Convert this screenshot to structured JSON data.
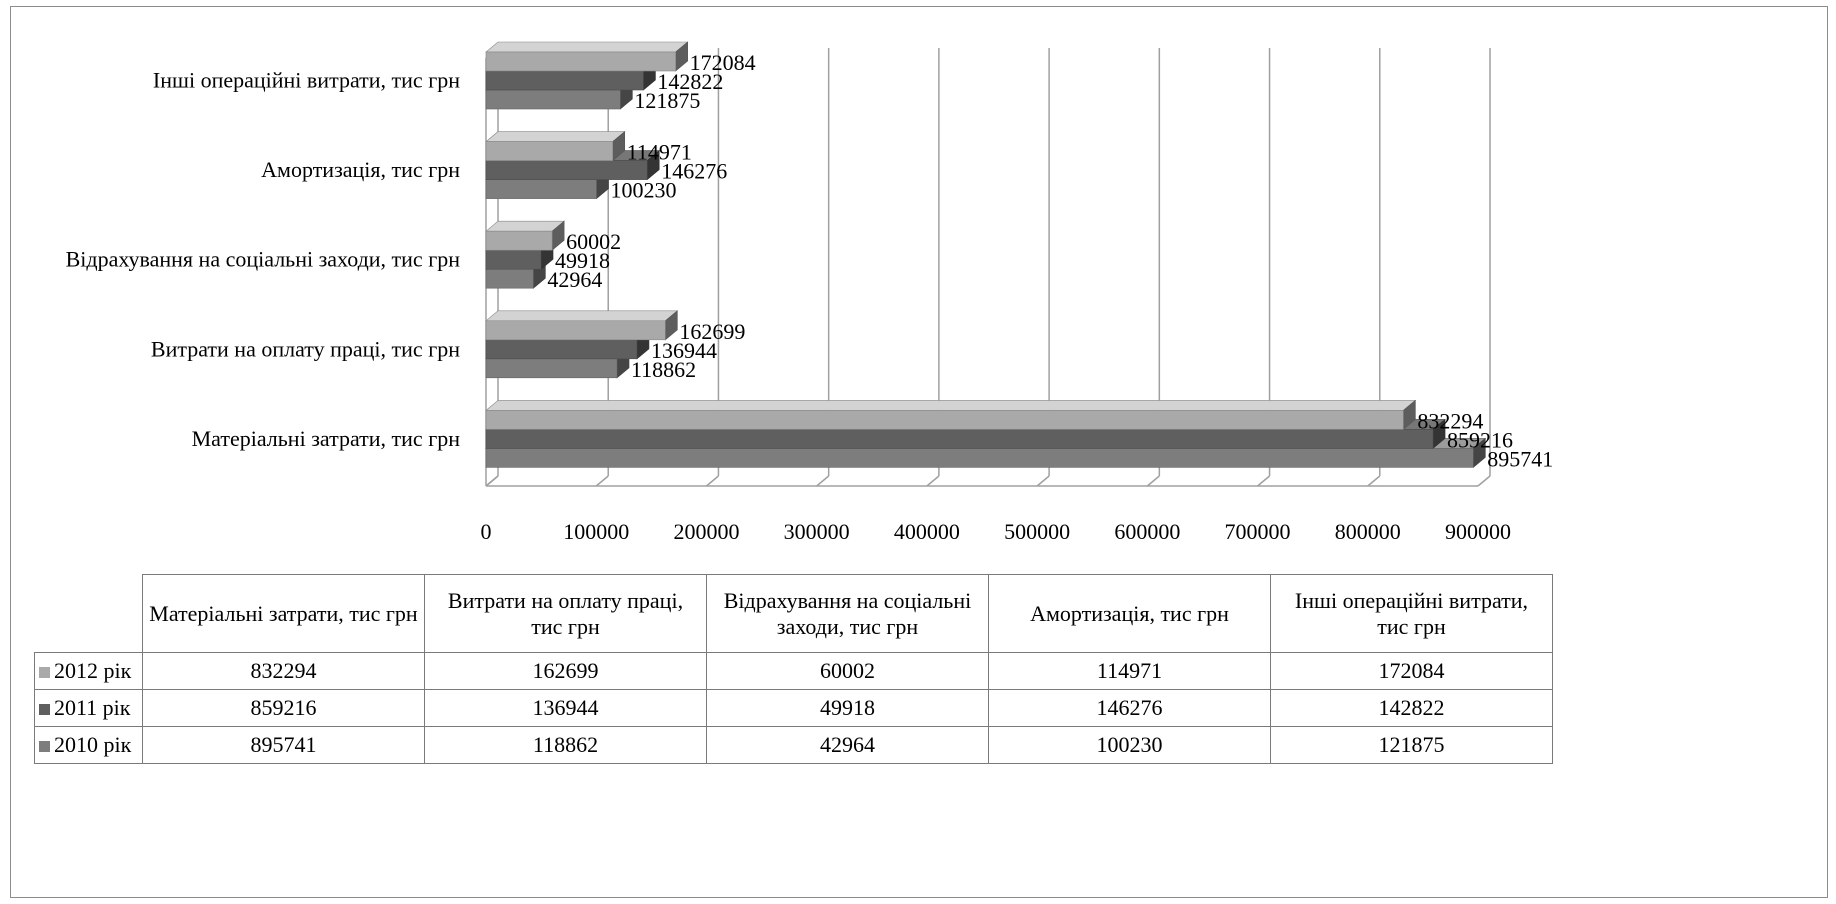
{
  "chart_data": {
    "type": "bar",
    "orientation": "horizontal",
    "categories": [
      "Матеріальні затрати, тис грн",
      "Витрати на оплату праці, тис грн",
      "Відрахування на соціальні заходи, тис грн",
      "Амортизація, тис грн",
      "Інші операційні витрати, тис грн"
    ],
    "table_headers": [
      "Матеріальні затрати, тис грн",
      "Витрати на оплату праці, тис грн",
      "Відрахування на соціальні заходи, тис грн",
      "Амортизація, тис грн",
      "Інші операційні витрати, тис грн"
    ],
    "series": [
      {
        "name": "2012 рік",
        "color": "#a9a9a9",
        "values": [
          832294,
          162699,
          60002,
          114971,
          172084
        ]
      },
      {
        "name": "2011 рік",
        "color": "#5f5f5f",
        "values": [
          859216,
          136944,
          49918,
          146276,
          142822
        ]
      },
      {
        "name": "2010 рік",
        "color": "#7d7d7d",
        "values": [
          895741,
          118862,
          42964,
          100230,
          121875
        ]
      }
    ],
    "xlim": [
      0,
      900000
    ],
    "xticks": [
      "0",
      "100000",
      "200000",
      "300000",
      "400000",
      "500000",
      "600000",
      "700000",
      "800000",
      "900000"
    ],
    "grid": true,
    "legend": "data-table"
  }
}
